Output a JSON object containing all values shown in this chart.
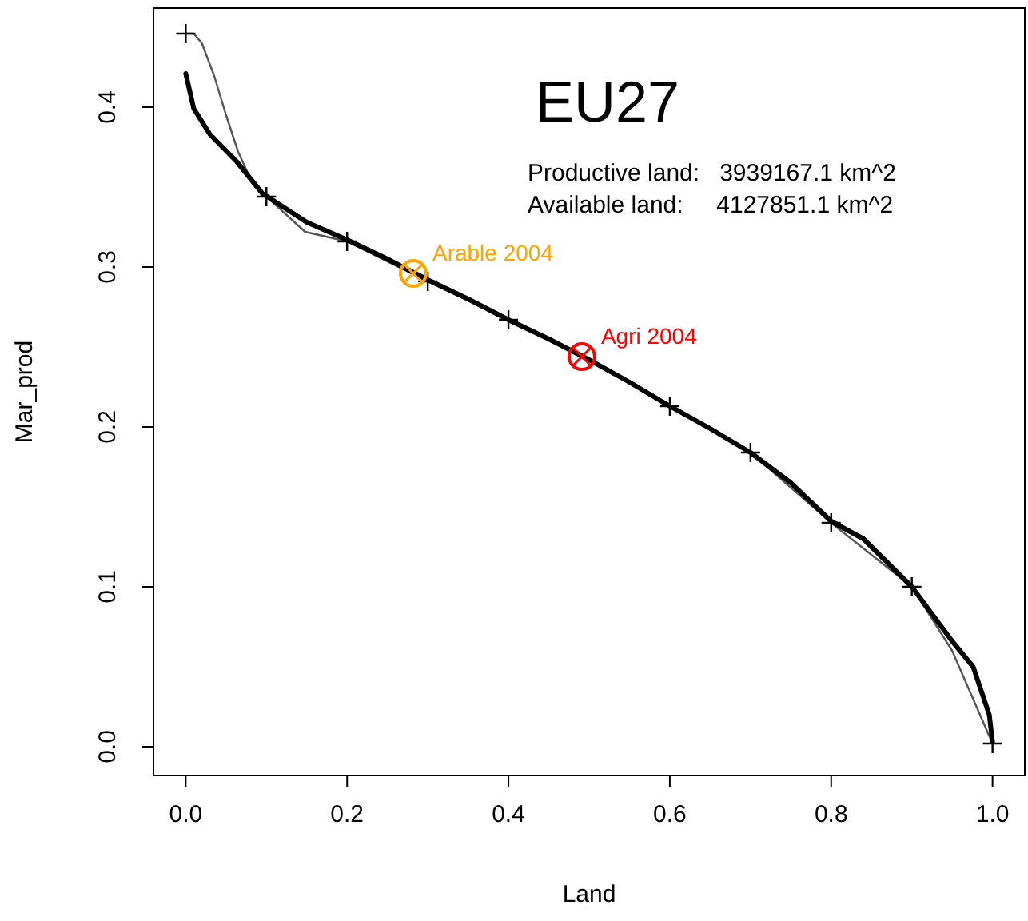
{
  "chart_data": {
    "type": "line",
    "title": "EU27",
    "xlabel": "Land",
    "ylabel": "Mar_prod",
    "annotations": [
      "Productive land:   3939167.1 km^2",
      "Available land:     4127851.1 km^2"
    ],
    "xlim": [
      -0.04,
      1.04
    ],
    "ylim": [
      -0.018,
      0.462
    ],
    "xticks": [
      {
        "value": 0,
        "label": "0.0"
      },
      0.2,
      0.4,
      0.6,
      0.8,
      {
        "value": 1,
        "label": "1.0"
      }
    ],
    "yticks": [
      {
        "value": 0,
        "label": "0.0"
      },
      0.1,
      0.2,
      0.3,
      0.4
    ],
    "grid": false,
    "legend": false,
    "series": [
      {
        "color": "#555555",
        "marker": "none",
        "x": [
          0,
          0.01,
          0.02,
          0.035,
          0.05,
          0.065,
          0.083,
          0.1,
          0.148,
          0.2,
          0.3,
          0.4,
          0.5,
          0.6,
          0.7,
          0.8,
          0.9,
          0.95,
          1
        ],
        "values": [
          0.446,
          0.446,
          0.44,
          0.42,
          0.395,
          0.372,
          0.352,
          0.344,
          0.322,
          0.316,
          0.291,
          0.267,
          0.242,
          0.213,
          0.184,
          0.14,
          0.1,
          0.06,
          0.002
        ]
      },
      {
        "color": "#000000",
        "marker": "none",
        "x": [
          0,
          0.01,
          0.03,
          0.063,
          0.095,
          0.15,
          0.2,
          0.25,
          0.3,
          0.35,
          0.4,
          0.45,
          0.5,
          0.55,
          0.6,
          0.65,
          0.7,
          0.75,
          0.8,
          0.84,
          0.88,
          0.9,
          0.95,
          0.976,
          0.996,
          1
        ],
        "values": [
          0.421,
          0.399,
          0.383,
          0.366,
          0.346,
          0.328,
          0.317,
          0.305,
          0.292,
          0.28,
          0.267,
          0.255,
          0.242,
          0.228,
          0.213,
          0.199,
          0.184,
          0.165,
          0.141,
          0.13,
          0.11,
          0.1,
          0.066,
          0.05,
          0.02,
          0.003
        ]
      },
      {
        "type": "scatter",
        "color": "#000000",
        "marker": "cross",
        "x": [
          0,
          0.1,
          0.2,
          0.3,
          0.4,
          0.6,
          0.7,
          0.8,
          0.9,
          1
        ],
        "values": [
          0.446,
          0.344,
          0.316,
          0.291,
          0.267,
          0.213,
          0.184,
          0.14,
          0.1,
          0.002
        ]
      },
      {
        "type": "scatter",
        "name": "Arable 2004",
        "color": "#ffa500",
        "marker": "circle",
        "x": [
          0.282
        ],
        "values": [
          0.296
        ]
      },
      {
        "type": "scatter",
        "name": "Agri 2004",
        "color": "#ff0000",
        "marker": "circle",
        "x": [
          0.491
        ],
        "values": [
          0.244
        ]
      }
    ]
  }
}
